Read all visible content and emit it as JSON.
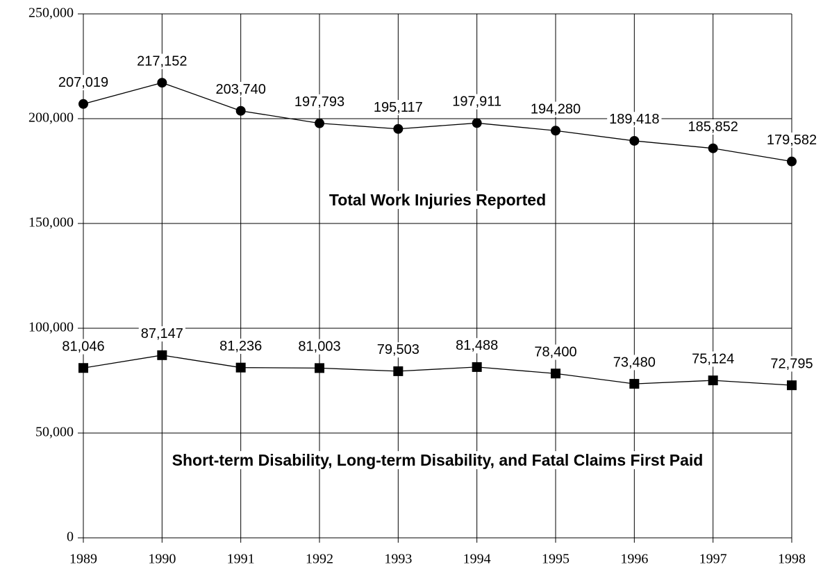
{
  "chart_data": {
    "type": "line",
    "x": [
      1989,
      1990,
      1991,
      1992,
      1993,
      1994,
      1995,
      1996,
      1997,
      1998
    ],
    "xlim": [
      1989,
      1998
    ],
    "xticks": [
      1989,
      1990,
      1991,
      1992,
      1993,
      1994,
      1995,
      1996,
      1997,
      1998
    ],
    "ylim": [
      0,
      250000
    ],
    "yticks": [
      0,
      {
        "value": 50000,
        "label": "50,000"
      },
      {
        "value": 100000,
        "label": "100,000"
      },
      {
        "value": 150000,
        "label": "150,000"
      },
      {
        "value": 200000,
        "label": "200,000"
      },
      {
        "value": 250000,
        "label": "250,000"
      }
    ],
    "grid": true,
    "series": [
      {
        "name": "Total Work Injuries Reported",
        "color": "#000000",
        "marker": "circle",
        "values": [
          207019,
          217152,
          203740,
          197793,
          195117,
          197911,
          194280,
          189418,
          185852,
          179582
        ],
        "value_labels": [
          "207,019",
          "217,152",
          "203,740",
          "197,793",
          "195,117",
          "197,911",
          "194,280",
          "189,418",
          "185,852",
          "179,582"
        ]
      },
      {
        "name": "Short-term Disability, Long-term Disability, and Fatal Claims First Paid",
        "color": "#000000",
        "marker": "square",
        "values": [
          81046,
          87147,
          81236,
          81003,
          79503,
          81488,
          78400,
          73480,
          75124,
          72795
        ],
        "value_labels": [
          "81,046",
          "87,147",
          "81,236",
          "81,003",
          "79,503",
          "81,488",
          "78,400",
          "73,480",
          "75,124",
          "72,795"
        ]
      }
    ]
  }
}
